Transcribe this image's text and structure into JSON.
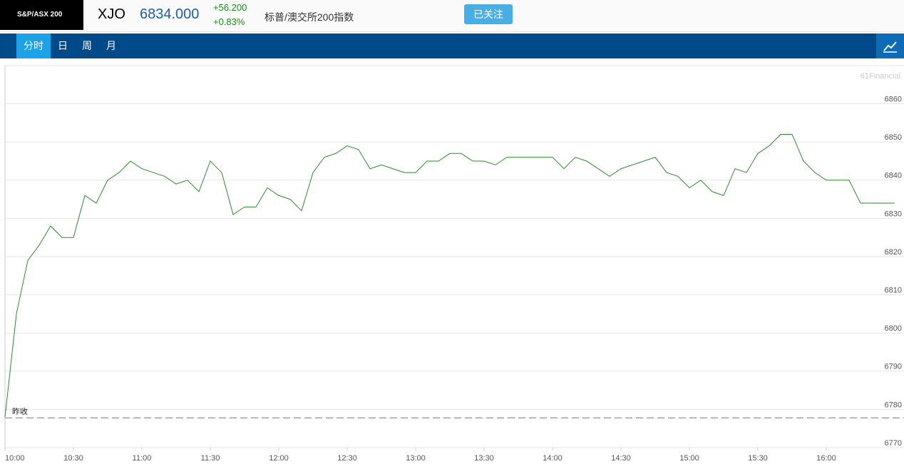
{
  "header": {
    "badge": "S&P/ASX 200",
    "symbol": "XJO",
    "price": "6834.000",
    "change": "+56.200",
    "change_pct": "+0.83%",
    "name": "标普/澳交所200指数",
    "follow_button": "已关注"
  },
  "tabs": [
    "分时",
    "日",
    "周",
    "月"
  ],
  "chart_data": {
    "type": "line",
    "watermark": "61Financial",
    "x": [
      "10:00",
      "10:05",
      "10:10",
      "10:15",
      "10:20",
      "10:25",
      "10:30",
      "10:35",
      "10:40",
      "10:45",
      "10:50",
      "10:55",
      "11:00",
      "11:05",
      "11:10",
      "11:15",
      "11:20",
      "11:25",
      "11:30",
      "11:35",
      "11:40",
      "11:45",
      "11:50",
      "11:55",
      "12:00",
      "12:05",
      "12:10",
      "12:15",
      "12:20",
      "12:25",
      "12:30",
      "12:35",
      "12:40",
      "12:45",
      "12:50",
      "12:55",
      "13:00",
      "13:05",
      "13:10",
      "13:15",
      "13:20",
      "13:25",
      "13:30",
      "13:35",
      "13:40",
      "13:45",
      "13:50",
      "13:55",
      "14:00",
      "14:05",
      "14:10",
      "14:15",
      "14:20",
      "14:25",
      "14:30",
      "14:35",
      "14:40",
      "14:45",
      "14:50",
      "14:55",
      "15:00",
      "15:05",
      "15:10",
      "15:15",
      "15:20",
      "15:25",
      "15:30",
      "15:35",
      "15:40",
      "15:45",
      "15:50",
      "15:55",
      "16:00",
      "16:05",
      "16:10",
      "16:15",
      "16:20",
      "16:25",
      "16:30"
    ],
    "series": [
      {
        "name": "XJO",
        "color": "#2e8b2e",
        "values": [
          6778,
          6805,
          6819,
          6823,
          6828,
          6825,
          6825,
          6836,
          6834,
          6840,
          6842,
          6845,
          6843,
          6842,
          6841,
          6839,
          6840,
          6837,
          6845,
          6842,
          6831,
          6833,
          6833,
          6838,
          6836,
          6835,
          6832,
          6842,
          6846,
          6847,
          6849,
          6848,
          6843,
          6844,
          6843,
          6842,
          6842,
          6845,
          6845,
          6847,
          6847,
          6845,
          6845,
          6844,
          6846,
          6846,
          6846,
          6846,
          6846,
          6843,
          6846,
          6845,
          6843,
          6841,
          6843,
          6844,
          6845,
          6846,
          6842,
          6841,
          6838,
          6840,
          6837,
          6836,
          6843,
          6842,
          6847,
          6849,
          6852,
          6852,
          6845,
          6842,
          6840,
          6840,
          6840,
          6834,
          6834,
          6834,
          6834
        ]
      }
    ],
    "prev_close": 6777.8,
    "prev_close_label": "昨收",
    "xlim": [
      "10:00",
      "16:30"
    ],
    "xticks": [
      "10:00",
      "10:30",
      "11:00",
      "11:30",
      "12:00",
      "12:30",
      "13:00",
      "13:30",
      "14:00",
      "14:30",
      "15:00",
      "15:30",
      "16:00"
    ],
    "ylim": [
      6770,
      6870
    ],
    "yticks": [
      6770,
      6780,
      6790,
      6800,
      6810,
      6820,
      6830,
      6840,
      6850,
      6860
    ],
    "grid": true
  }
}
